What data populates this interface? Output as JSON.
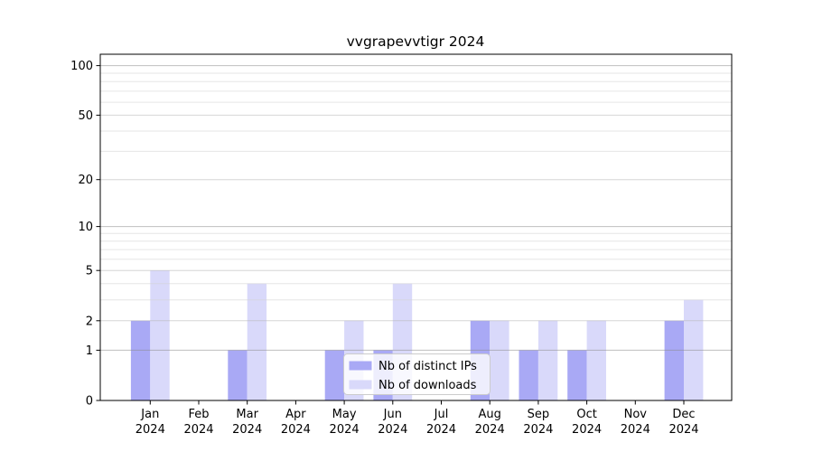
{
  "title": "vvgrapevvtigr 2024",
  "chart_data": {
    "type": "bar",
    "title": "vvgrapevvtigr 2024",
    "categories": [
      "Jan 2024",
      "Feb 2024",
      "Mar 2024",
      "Apr 2024",
      "May 2024",
      "Jun 2024",
      "Jul 2024",
      "Aug 2024",
      "Sep 2024",
      "Oct 2024",
      "Nov 2024",
      "Dec 2024"
    ],
    "months": [
      "Jan",
      "Feb",
      "Mar",
      "Apr",
      "May",
      "Jun",
      "Jul",
      "Aug",
      "Sep",
      "Oct",
      "Nov",
      "Dec"
    ],
    "year_label": "2024",
    "series": [
      {
        "name": "Nb of distinct IPs",
        "color": "#a9a9f5",
        "values": [
          2,
          0,
          1,
          0,
          1,
          1,
          0,
          2,
          1,
          1,
          0,
          2
        ]
      },
      {
        "name": "Nb of downloads",
        "color": "#d9d9fa",
        "values": [
          5,
          0,
          4,
          0,
          2,
          4,
          0,
          2,
          2,
          2,
          0,
          3
        ]
      }
    ],
    "yscale": "log1p",
    "y_tick_labels": [
      "0",
      "1",
      "2",
      "5",
      "10",
      "20",
      "50",
      "100"
    ],
    "y_tick_values": [
      0,
      1,
      2,
      5,
      10,
      20,
      50,
      100
    ],
    "ylim": [
      0,
      117
    ],
    "grid": "on",
    "legend_position": "lower center",
    "colors": {
      "grid_major": "#8a8a8a",
      "grid_mid": "#b5b5b5",
      "grid_minor": "#d2d2d2",
      "spine": "#000000",
      "legend_border": "#cccccc"
    }
  }
}
